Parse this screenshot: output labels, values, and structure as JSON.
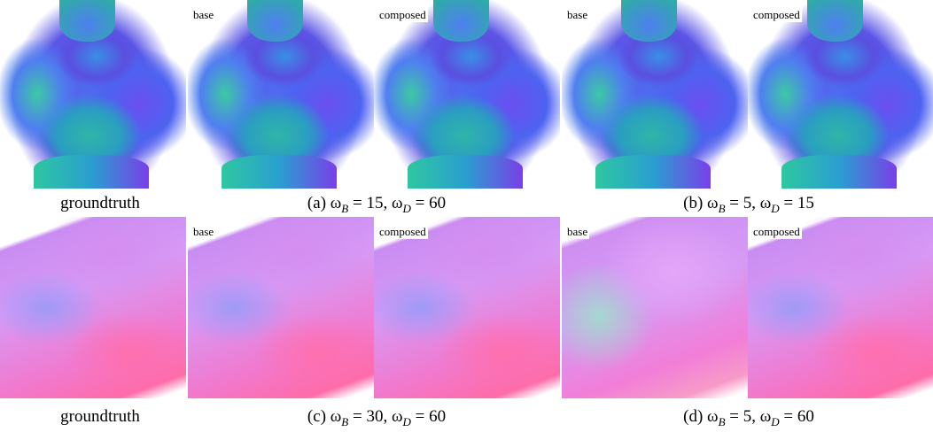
{
  "rows": [
    {
      "panels": [
        {
          "corner": null
        },
        {
          "corner": "base"
        },
        {
          "corner": "composed"
        },
        {
          "corner": "base"
        },
        {
          "corner": "composed"
        }
      ],
      "captions": [
        {
          "parts": [
            "groundtruth"
          ]
        },
        {
          "parts": [
            "(a) ω",
            "B",
            " = 15, ω",
            "D",
            " = 60"
          ]
        },
        {
          "parts": [
            "(b) ω",
            "B",
            " = 5, ω",
            "D",
            " = 15"
          ]
        }
      ]
    },
    {
      "panels": [
        {
          "corner": null
        },
        {
          "corner": "base"
        },
        {
          "corner": "composed"
        },
        {
          "corner": "base"
        },
        {
          "corner": "composed"
        }
      ],
      "captions": [
        {
          "parts": [
            "groundtruth"
          ]
        },
        {
          "parts": [
            "(c) ω",
            "B",
            " = 30, ω",
            "D",
            " = 60"
          ]
        },
        {
          "parts": [
            "(d) ω",
            "B",
            " = 5, ω",
            "D",
            " = 60"
          ]
        }
      ]
    }
  ]
}
